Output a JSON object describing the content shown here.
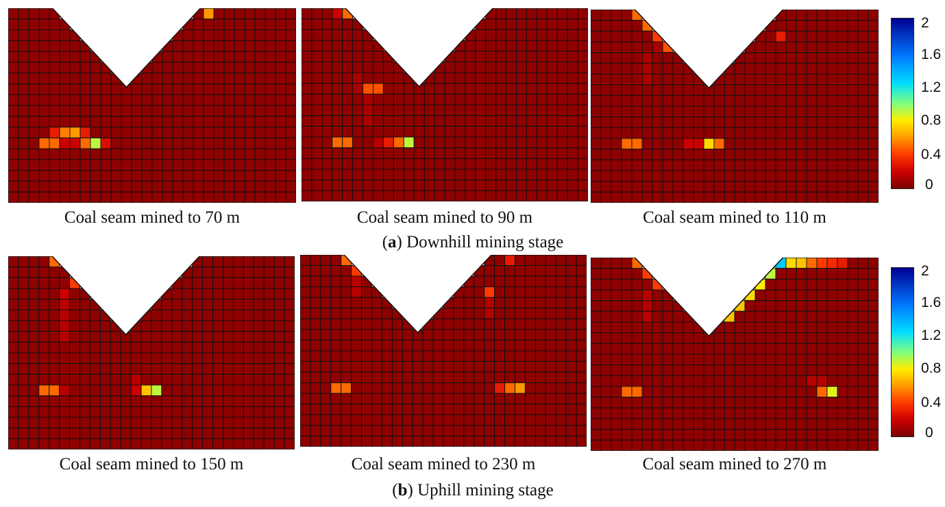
{
  "colors": {
    "grid_line": "#111111",
    "colormap": [
      "#7a0000",
      "#cc0000",
      "#ff3a00",
      "#ff9900",
      "#ffee00",
      "#7fff7f",
      "#00ddff",
      "#0077ff",
      "#00008f"
    ]
  },
  "stages": [
    {
      "letter": "a",
      "text": ") Downhill mining stage"
    },
    {
      "letter": "b",
      "text": ") Uphill mining stage"
    }
  ],
  "colorbar": {
    "ticks": [
      "2",
      "1.6",
      "1.2",
      "0.8",
      "0.4",
      "0"
    ],
    "range": [
      0,
      2
    ]
  },
  "chart_data": [
    {
      "type": "heatmap",
      "title": "Coal seam mined to 70 m",
      "rows": 18,
      "cols": 28,
      "background_value": 0.05,
      "cells": [
        {
          "r": 11,
          "c": 4,
          "v": 0.3
        },
        {
          "r": 11,
          "c": 5,
          "v": 0.55
        },
        {
          "r": 11,
          "c": 6,
          "v": 0.6
        },
        {
          "r": 11,
          "c": 7,
          "v": 0.3
        },
        {
          "r": 12,
          "c": 3,
          "v": 0.5
        },
        {
          "r": 12,
          "c": 4,
          "v": 0.5
        },
        {
          "r": 12,
          "c": 5,
          "v": 0.2
        },
        {
          "r": 12,
          "c": 6,
          "v": 0.2
        },
        {
          "r": 12,
          "c": 7,
          "v": 0.5
        },
        {
          "r": 12,
          "c": 8,
          "v": 0.9
        },
        {
          "r": 12,
          "c": 9,
          "v": 0.25
        },
        {
          "r": 0,
          "c": 19,
          "v": 0.6
        }
      ]
    },
    {
      "type": "heatmap",
      "title": "Coal seam mined to 90 m",
      "rows": 18,
      "cols": 28,
      "background_value": 0.05,
      "cells": [
        {
          "r": 6,
          "c": 5,
          "v": 0.12
        },
        {
          "r": 7,
          "c": 5,
          "v": 0.12
        },
        {
          "r": 7,
          "c": 6,
          "v": 0.45
        },
        {
          "r": 7,
          "c": 7,
          "v": 0.45
        },
        {
          "r": 8,
          "c": 6,
          "v": 0.12
        },
        {
          "r": 9,
          "c": 6,
          "v": 0.12
        },
        {
          "r": 10,
          "c": 6,
          "v": 0.12
        },
        {
          "r": 12,
          "c": 3,
          "v": 0.5
        },
        {
          "r": 12,
          "c": 4,
          "v": 0.5
        },
        {
          "r": 12,
          "c": 7,
          "v": 0.15
        },
        {
          "r": 12,
          "c": 8,
          "v": 0.3
        },
        {
          "r": 12,
          "c": 9,
          "v": 0.5
        },
        {
          "r": 12,
          "c": 10,
          "v": 0.9
        },
        {
          "r": 0,
          "c": 3,
          "v": 0.2
        },
        {
          "r": 0,
          "c": 4,
          "v": 0.5
        }
      ]
    },
    {
      "type": "heatmap",
      "title": "Coal seam mined to 110 m",
      "rows": 18,
      "cols": 28,
      "background_value": 0.05,
      "cells": [
        {
          "r": 0,
          "c": 4,
          "v": 0.5
        },
        {
          "r": 1,
          "c": 5,
          "v": 0.5
        },
        {
          "r": 2,
          "c": 6,
          "v": 0.4
        },
        {
          "r": 3,
          "c": 7,
          "v": 0.45
        },
        {
          "r": 3,
          "c": 6,
          "v": 0.12
        },
        {
          "r": 4,
          "c": 5,
          "v": 0.12
        },
        {
          "r": 5,
          "c": 5,
          "v": 0.12
        },
        {
          "r": 6,
          "c": 5,
          "v": 0.12
        },
        {
          "r": 12,
          "c": 3,
          "v": 0.5
        },
        {
          "r": 12,
          "c": 4,
          "v": 0.5
        },
        {
          "r": 12,
          "c": 9,
          "v": 0.2
        },
        {
          "r": 12,
          "c": 10,
          "v": 0.2
        },
        {
          "r": 12,
          "c": 11,
          "v": 0.75
        },
        {
          "r": 12,
          "c": 12,
          "v": 0.5
        },
        {
          "r": 2,
          "c": 18,
          "v": 0.3
        }
      ]
    },
    {
      "type": "heatmap",
      "title": "Coal seam mined to 150 m",
      "rows": 18,
      "cols": 28,
      "background_value": 0.05,
      "cells": [
        {
          "r": 0,
          "c": 4,
          "v": 0.5
        },
        {
          "r": 2,
          "c": 6,
          "v": 0.4
        },
        {
          "r": 3,
          "c": 5,
          "v": 0.2
        },
        {
          "r": 4,
          "c": 5,
          "v": 0.15
        },
        {
          "r": 5,
          "c": 5,
          "v": 0.15
        },
        {
          "r": 6,
          "c": 5,
          "v": 0.15
        },
        {
          "r": 7,
          "c": 5,
          "v": 0.15
        },
        {
          "r": 11,
          "c": 12,
          "v": 0.15
        },
        {
          "r": 12,
          "c": 3,
          "v": 0.5
        },
        {
          "r": 12,
          "c": 4,
          "v": 0.5
        },
        {
          "r": 12,
          "c": 5,
          "v": 0.15
        },
        {
          "r": 12,
          "c": 12,
          "v": 0.2
        },
        {
          "r": 12,
          "c": 13,
          "v": 0.7
        },
        {
          "r": 12,
          "c": 14,
          "v": 0.9
        }
      ]
    },
    {
      "type": "heatmap",
      "title": "Coal seam mined to 230 m",
      "rows": 18,
      "cols": 28,
      "background_value": 0.05,
      "cells": [
        {
          "r": 0,
          "c": 4,
          "v": 0.5
        },
        {
          "r": 1,
          "c": 5,
          "v": 0.4
        },
        {
          "r": 2,
          "c": 5,
          "v": 0.15
        },
        {
          "r": 3,
          "c": 5,
          "v": 0.15
        },
        {
          "r": 3,
          "c": 18,
          "v": 0.4
        },
        {
          "r": 4,
          "c": 18,
          "v": 0.15
        },
        {
          "r": 5,
          "c": 18,
          "v": 0.15
        },
        {
          "r": 12,
          "c": 3,
          "v": 0.5
        },
        {
          "r": 12,
          "c": 4,
          "v": 0.5
        },
        {
          "r": 12,
          "c": 19,
          "v": 0.3
        },
        {
          "r": 12,
          "c": 20,
          "v": 0.5
        },
        {
          "r": 12,
          "c": 21,
          "v": 0.6
        },
        {
          "r": 0,
          "c": 20,
          "v": 0.3
        }
      ]
    },
    {
      "type": "heatmap",
      "title": "Coal seam mined to 270 m",
      "rows": 18,
      "cols": 28,
      "background_value": 0.05,
      "cells": [
        {
          "r": 0,
          "c": 4,
          "v": 0.5
        },
        {
          "r": 1,
          "c": 5,
          "v": 0.4
        },
        {
          "r": 2,
          "c": 6,
          "v": 0.4
        },
        {
          "r": 3,
          "c": 5,
          "v": 0.15
        },
        {
          "r": 4,
          "c": 5,
          "v": 0.15
        },
        {
          "r": 5,
          "c": 5,
          "v": 0.15
        },
        {
          "r": 0,
          "c": 18,
          "v": 1.3
        },
        {
          "r": 0,
          "c": 19,
          "v": 0.75
        },
        {
          "r": 0,
          "c": 20,
          "v": 0.7
        },
        {
          "r": 0,
          "c": 21,
          "v": 0.5
        },
        {
          "r": 0,
          "c": 22,
          "v": 0.4
        },
        {
          "r": 0,
          "c": 23,
          "v": 0.35
        },
        {
          "r": 0,
          "c": 24,
          "v": 0.3
        },
        {
          "r": 1,
          "c": 17,
          "v": 0.9
        },
        {
          "r": 2,
          "c": 16,
          "v": 0.8
        },
        {
          "r": 3,
          "c": 15,
          "v": 0.75
        },
        {
          "r": 4,
          "c": 14,
          "v": 0.7
        },
        {
          "r": 5,
          "c": 13,
          "v": 0.7
        },
        {
          "r": 11,
          "c": 21,
          "v": 0.15
        },
        {
          "r": 11,
          "c": 22,
          "v": 0.15
        },
        {
          "r": 12,
          "c": 3,
          "v": 0.5
        },
        {
          "r": 12,
          "c": 4,
          "v": 0.5
        },
        {
          "r": 12,
          "c": 22,
          "v": 0.5
        },
        {
          "r": 12,
          "c": 23,
          "v": 0.85
        }
      ]
    }
  ]
}
